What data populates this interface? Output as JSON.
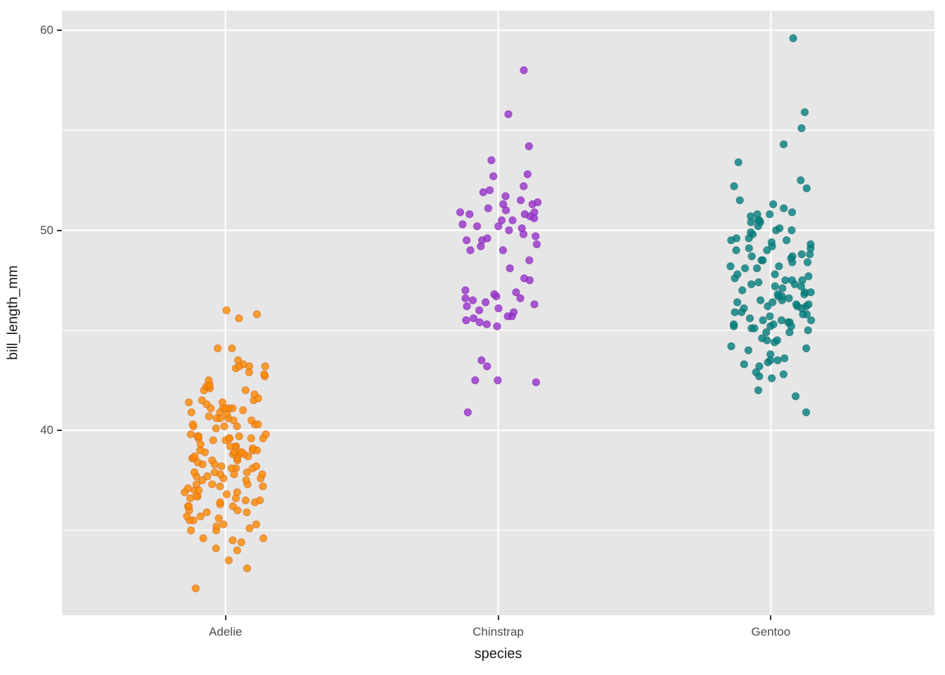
{
  "figure": {
    "background_color": "#FFFFFF",
    "panel_background_color": "#E6E6E6",
    "gridline_color": "#FFFFFF",
    "tick_color": "#333333",
    "axis_text_color": "#4D4D4D",
    "axis_title_color": "#1A1A1A"
  },
  "chart_data": {
    "type": "scatter",
    "subtype": "jittered-strip-plot",
    "title": "",
    "xlabel": "species",
    "ylabel": "bill_length_mm",
    "categories": [
      "Adelie",
      "Chinstrap",
      "Gentoo"
    ],
    "y_ticks": [
      40,
      50,
      60
    ],
    "y_tick_labels": [
      "40",
      "50",
      "60"
    ],
    "y_minor_ticks": [
      35,
      45,
      55
    ],
    "ylim": [
      30.8,
      61.0
    ],
    "grid": true,
    "legend_position": "none",
    "jitter_half_width": 0.15,
    "point_colors": {
      "Adelie": {
        "fill": "#FF8C00",
        "stroke": "#E67817"
      },
      "Chinstrap": {
        "fill": "#9932CC",
        "stroke": "#8E2BBE"
      },
      "Gentoo": {
        "fill": "#008080",
        "stroke": "#0E7574"
      }
    },
    "series": [
      {
        "name": "Adelie",
        "n": 151,
        "values": [
          32.1,
          33.1,
          33.5,
          34.0,
          34.1,
          34.4,
          34.5,
          34.6,
          34.6,
          35.0,
          35.0,
          35.1,
          35.2,
          35.3,
          35.3,
          35.5,
          35.5,
          35.6,
          35.7,
          35.7,
          35.9,
          35.9,
          36.0,
          36.0,
          36.2,
          36.2,
          36.2,
          36.3,
          36.4,
          36.4,
          36.5,
          36.5,
          36.6,
          36.6,
          36.7,
          36.7,
          36.8,
          36.9,
          36.9,
          37.0,
          37.0,
          37.1,
          37.2,
          37.2,
          37.3,
          37.3,
          37.3,
          37.5,
          37.5,
          37.6,
          37.6,
          37.7,
          37.7,
          37.8,
          37.8,
          37.8,
          37.9,
          37.9,
          37.9,
          38.1,
          38.1,
          38.1,
          38.2,
          38.2,
          38.3,
          38.3,
          38.4,
          38.5,
          38.5,
          38.6,
          38.6,
          38.6,
          38.7,
          38.7,
          38.8,
          38.8,
          38.8,
          38.9,
          38.9,
          38.9,
          38.9,
          39.0,
          39.0,
          39.0,
          39.1,
          39.2,
          39.2,
          39.2,
          39.3,
          39.5,
          39.5,
          39.6,
          39.6,
          39.6,
          39.6,
          39.6,
          39.7,
          39.7,
          39.7,
          39.8,
          39.8,
          40.1,
          40.2,
          40.2,
          40.2,
          40.3,
          40.3,
          40.3,
          40.5,
          40.5,
          40.6,
          40.6,
          40.6,
          40.7,
          40.8,
          40.9,
          40.9,
          41.0,
          41.1,
          41.1,
          41.1,
          41.1,
          41.1,
          41.3,
          41.4,
          41.4,
          41.5,
          41.5,
          41.6,
          41.8,
          42.0,
          42.0,
          42.1,
          42.2,
          42.2,
          42.3,
          42.5,
          42.7,
          42.8,
          42.9,
          43.1,
          43.2,
          43.2,
          43.2,
          43.3,
          43.5,
          44.1,
          44.1,
          45.6,
          45.8,
          46.0
        ]
      },
      {
        "name": "Chinstrap",
        "n": 68,
        "values": [
          40.9,
          42.4,
          42.5,
          42.5,
          43.2,
          43.5,
          45.2,
          45.3,
          45.4,
          45.5,
          45.6,
          45.7,
          45.7,
          45.9,
          46.0,
          46.1,
          46.2,
          46.3,
          46.4,
          46.5,
          46.6,
          46.6,
          46.7,
          46.8,
          46.9,
          47.0,
          47.5,
          47.6,
          48.1,
          48.5,
          49.0,
          49.0,
          49.2,
          49.3,
          49.5,
          49.5,
          49.6,
          49.7,
          49.8,
          50.0,
          50.1,
          50.2,
          50.2,
          50.3,
          50.5,
          50.5,
          50.6,
          50.7,
          50.8,
          50.8,
          50.9,
          50.9,
          51.0,
          51.1,
          51.3,
          51.3,
          51.4,
          51.5,
          51.7,
          51.9,
          52.0,
          52.2,
          52.7,
          52.8,
          53.5,
          54.2,
          55.8,
          58.0
        ]
      },
      {
        "name": "Gentoo",
        "n": 123,
        "values": [
          40.9,
          41.7,
          42.0,
          42.6,
          42.7,
          42.8,
          42.9,
          43.2,
          43.3,
          43.4,
          43.5,
          43.5,
          43.6,
          43.8,
          44.0,
          44.1,
          44.2,
          44.4,
          44.5,
          44.5,
          44.6,
          44.9,
          44.9,
          45.0,
          45.1,
          45.1,
          45.2,
          45.2,
          45.2,
          45.3,
          45.3,
          45.4,
          45.4,
          45.5,
          45.5,
          45.5,
          45.6,
          45.7,
          45.8,
          45.8,
          45.9,
          45.9,
          46.1,
          46.1,
          46.2,
          46.2,
          46.2,
          46.3,
          46.3,
          46.4,
          46.4,
          46.5,
          46.5,
          46.6,
          46.7,
          46.7,
          46.8,
          46.8,
          46.9,
          46.9,
          47.0,
          47.1,
          47.2,
          47.2,
          47.3,
          47.3,
          47.4,
          47.5,
          47.5,
          47.5,
          47.6,
          47.7,
          47.8,
          47.8,
          48.1,
          48.1,
          48.2,
          48.2,
          48.4,
          48.4,
          48.5,
          48.5,
          48.6,
          48.7,
          48.7,
          48.8,
          48.8,
          49.0,
          49.0,
          49.1,
          49.1,
          49.2,
          49.3,
          49.4,
          49.5,
          49.5,
          49.6,
          49.6,
          49.8,
          49.9,
          50.0,
          50.0,
          50.1,
          50.2,
          50.4,
          50.4,
          50.5,
          50.5,
          50.7,
          50.8,
          50.8,
          50.9,
          51.1,
          51.3,
          51.5,
          52.1,
          52.2,
          52.5,
          53.4,
          54.3,
          55.1,
          55.9,
          59.6
        ]
      }
    ]
  }
}
